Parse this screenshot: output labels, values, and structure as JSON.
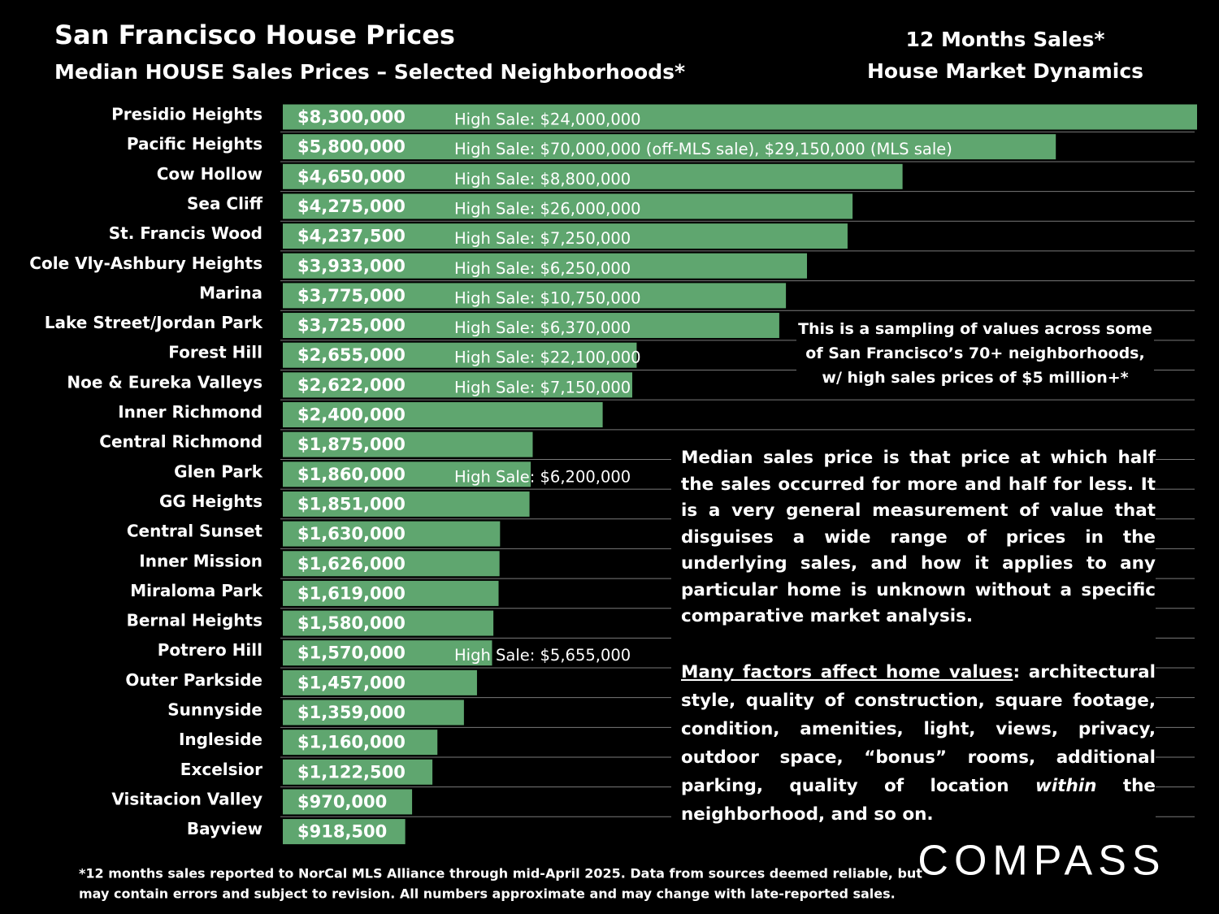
{
  "chart_data": {
    "type": "bar",
    "orientation": "horizontal",
    "title": "San Francisco House Prices",
    "subtitle": "Median HOUSE Sales Prices – Selected Neighborhoods*",
    "side_heading": [
      "12 Months Sales*",
      "House Market Dynamics"
    ],
    "categories": [
      "Presidio Heights",
      "Pacific Heights",
      "Cow Hollow",
      "Sea Cliff",
      "St. Francis Wood",
      "Cole Vly-Ashbury Heights",
      "Marina",
      "Lake Street/Jordan Park",
      "Forest Hill",
      "Noe & Eureka Valleys",
      "Inner Richmond",
      "Central Richmond",
      "Glen Park",
      "GG Heights",
      "Central Sunset",
      "Inner Mission",
      "Miraloma Park",
      "Bernal Heights",
      "Potrero Hill",
      "Outer Parkside",
      "Sunnyside",
      "Ingleside",
      "Excelsior",
      "Visitacion Valley",
      "Bayview"
    ],
    "values": [
      8300000,
      5800000,
      4650000,
      4275000,
      4237500,
      3933000,
      3775000,
      3725000,
      2655000,
      2622000,
      2400000,
      1875000,
      1860000,
      1851000,
      1630000,
      1626000,
      1619000,
      1580000,
      1570000,
      1457000,
      1359000,
      1160000,
      1122500,
      970000,
      918500
    ],
    "value_labels": [
      "$8,300,000",
      "$5,800,000",
      "$4,650,000",
      "$4,275,000",
      "$4,237,500",
      "$3,933,000",
      "$3,775,000",
      "$3,725,000",
      "$2,655,000",
      "$2,622,000",
      "$2,400,000",
      "$1,875,000",
      "$1,860,000",
      "$1,851,000",
      "$1,630,000",
      "$1,626,000",
      "$1,619,000",
      "$1,580,000",
      "$1,570,000",
      "$1,457,000",
      "$1,359,000",
      "$1,160,000",
      "$1,122,500",
      "$970,000",
      "$918,500"
    ],
    "high_sales": [
      "High Sale:  $24,000,000",
      "High Sale:  $70,000,000 (off-MLS sale), $29,150,000 (MLS sale)",
      "High Sale:  $8,800,000",
      "High Sale:  $26,000,000",
      "High Sale:  $7,250,000",
      "High Sale:  $6,250,000",
      "High Sale:  $10,750,000",
      "High Sale:  $6,370,000",
      "High Sale:  $22,100,000",
      "High Sale:  $7,150,000",
      null,
      null,
      "High Sale:  $6,200,000",
      null,
      null,
      null,
      null,
      null,
      "High Sale:  $5,655,000",
      null,
      null,
      null,
      null,
      null,
      null
    ],
    "color": "#5fa66f",
    "xlim": [
      0,
      7000000
    ],
    "sampling_note": [
      "This is a sampling of values across some",
      "of San Francisco’s 70+ neighborhoods,",
      "w/ high sales prices of $5 million+*"
    ],
    "median_note": "Median sales price is that price at which half the sales occurred for more and half for less. It is a very general measurement of value that disguises a wide range of prices in the underlying sales, and how it applies to any particular home is unknown without a specific comparative market analysis.",
    "factors_note": [
      "Many factors affect home values",
      ": architectural style, quality of construction, square footage, condition, amenities, light, views, privacy, outdoor space, “bonus” rooms, additional parking, quality of location ",
      "within",
      " the neighborhood, and so on."
    ],
    "footnote": [
      "*12 months sales reported to NorCal MLS Alliance through mid-April 2025. Data from sources deemed reliable, but",
      "may contain errors and subject to revision. All numbers approximate and may change with late-reported sales."
    ],
    "logo": "COMPASS"
  }
}
